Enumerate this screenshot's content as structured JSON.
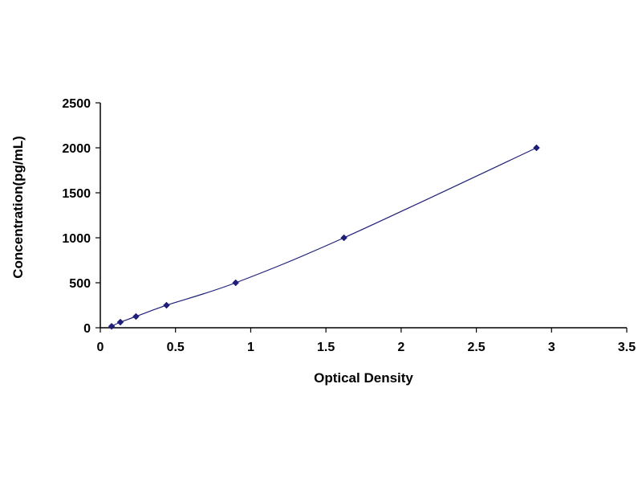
{
  "chart_data": {
    "type": "scatter",
    "title": "",
    "xlabel": "Optical Density",
    "ylabel": "Concentration(pg/mL)",
    "xlim": [
      0,
      3.5
    ],
    "ylim": [
      0,
      2500
    ],
    "x_ticks": [
      "0",
      "0.5",
      "1",
      "1.5",
      "2",
      "2.5",
      "3",
      "3.5"
    ],
    "y_ticks": [
      "0",
      "500",
      "1000",
      "1500",
      "2000",
      "2500"
    ],
    "grid": false,
    "legend": "none",
    "series": [
      {
        "points": [
          {
            "x": 0.075,
            "y": 15.6
          },
          {
            "x": 0.133,
            "y": 62.5
          },
          {
            "x": 0.237,
            "y": 125
          },
          {
            "x": 0.44,
            "y": 250
          },
          {
            "x": 0.9,
            "y": 500
          },
          {
            "x": 1.62,
            "y": 1000
          },
          {
            "x": 2.9,
            "y": 2000
          }
        ],
        "color": "#1f1f7a",
        "marker": "diamond",
        "trendline": "smooth"
      }
    ]
  }
}
